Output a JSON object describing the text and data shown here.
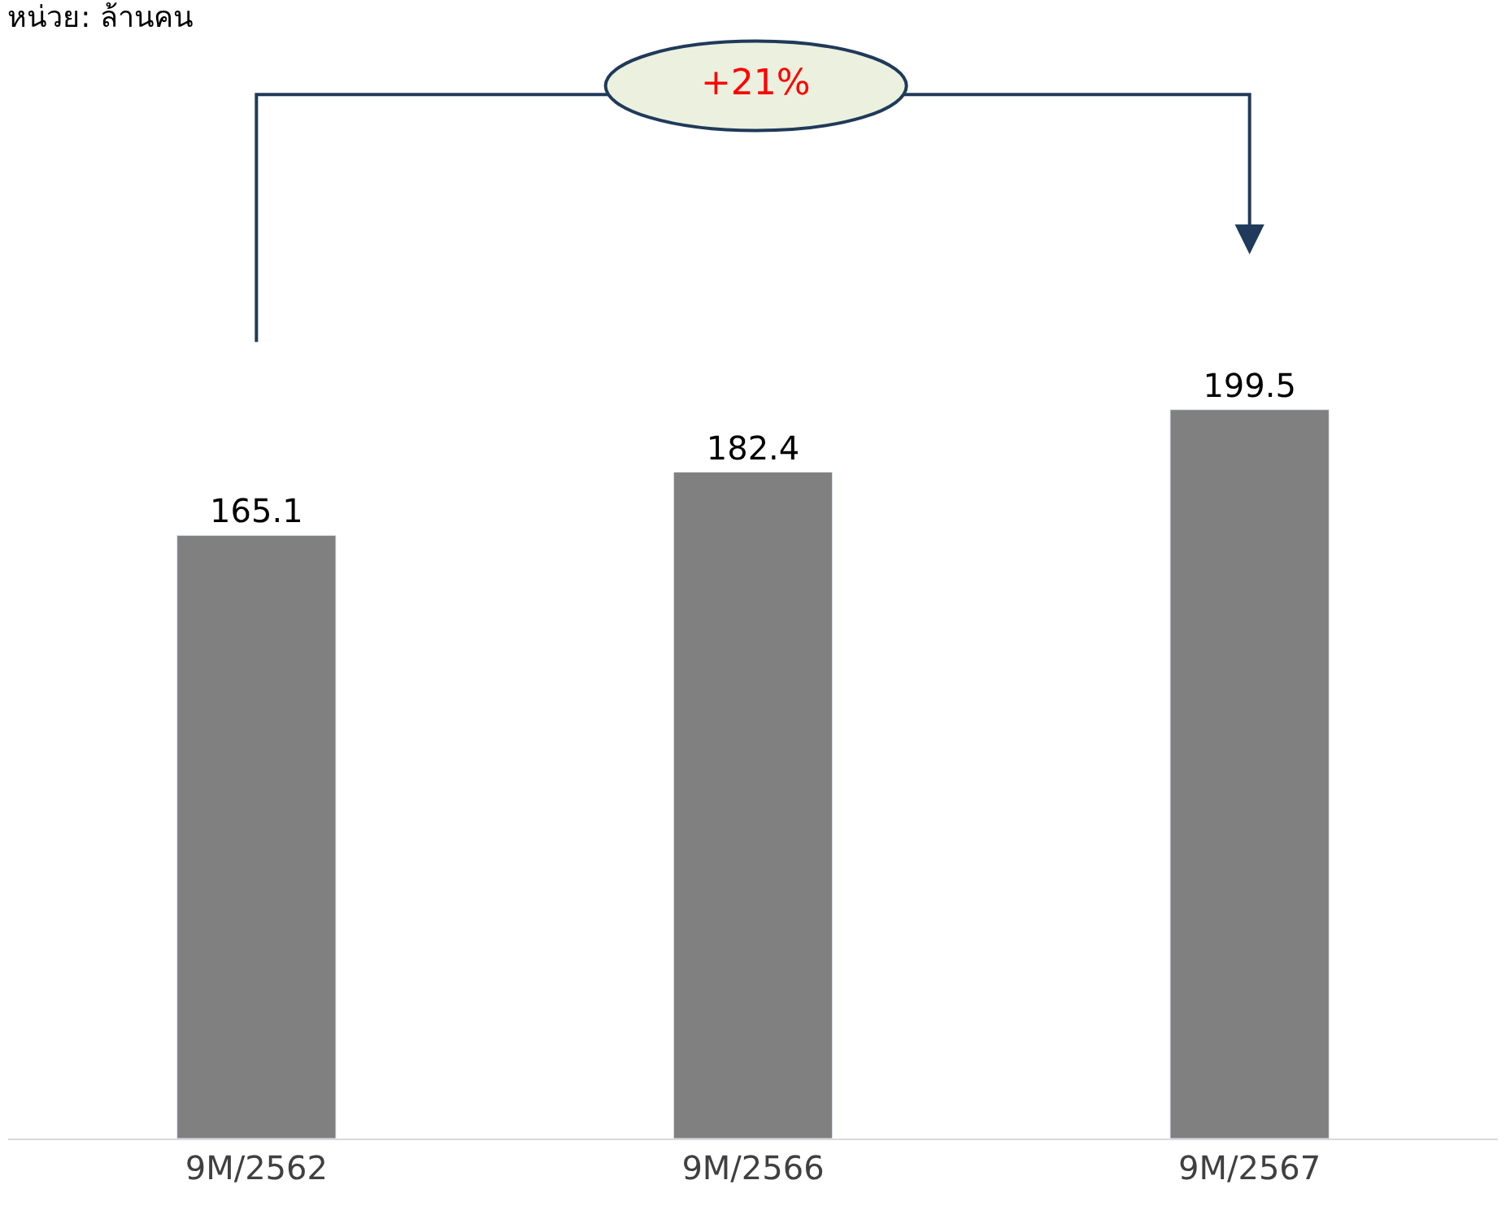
{
  "chart_data": {
    "type": "bar",
    "title": "หน่วย: ล้านคน",
    "categories": [
      "9M/2562",
      "9M/2566",
      "9M/2567"
    ],
    "values": [
      165.1,
      182.4,
      199.5
    ],
    "color": "#808080",
    "data_labels": true,
    "annotations": [
      "+21%"
    ]
  }
}
